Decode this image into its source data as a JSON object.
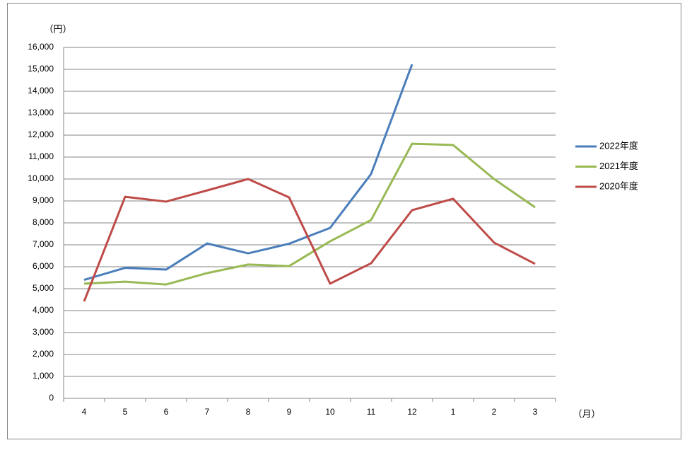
{
  "chart_data": {
    "type": "line",
    "y_label": "（円）",
    "x_label": "（月）",
    "categories": [
      "4",
      "5",
      "6",
      "7",
      "8",
      "9",
      "10",
      "11",
      "12",
      "1",
      "2",
      "3"
    ],
    "ylim": [
      0,
      16000
    ],
    "yticks": [
      0,
      {
        "value": 1000,
        "label": "1,000"
      },
      {
        "value": 2000,
        "label": "2,000"
      },
      {
        "value": 3000,
        "label": "3,000"
      },
      {
        "value": 4000,
        "label": "4,000"
      },
      {
        "value": 5000,
        "label": "5,000"
      },
      {
        "value": 6000,
        "label": "6,000"
      },
      {
        "value": 7000,
        "label": "7,000"
      },
      {
        "value": 8000,
        "label": "8,000"
      },
      {
        "value": 9000,
        "label": "9,000"
      },
      {
        "value": 10000,
        "label": "10,000"
      },
      {
        "value": 11000,
        "label": "11,000"
      },
      {
        "value": 12000,
        "label": "12,000"
      },
      {
        "value": 13000,
        "label": "13,000"
      },
      {
        "value": 14000,
        "label": "14,000"
      },
      {
        "value": 15000,
        "label": "15,000"
      },
      {
        "value": 16000,
        "label": "16,000"
      }
    ],
    "grid": true,
    "legend": "right",
    "series": [
      {
        "name": "2022年度",
        "color": "#4a7ebb",
        "values": [
          5400,
          5950,
          5870,
          7060,
          6610,
          7050,
          7770,
          10230,
          15230,
          null,
          null,
          null
        ]
      },
      {
        "name": "2021年度",
        "color": "#98b954",
        "values": [
          5230,
          5320,
          5190,
          5710,
          6100,
          6030,
          7160,
          8130,
          11610,
          11550,
          10000,
          8710
        ]
      },
      {
        "name": "2020年度",
        "color": "#be4b48",
        "values": [
          4420,
          9190,
          8970,
          9480,
          10000,
          9160,
          5230,
          6160,
          8580,
          9100,
          7100,
          6130
        ]
      }
    ]
  }
}
